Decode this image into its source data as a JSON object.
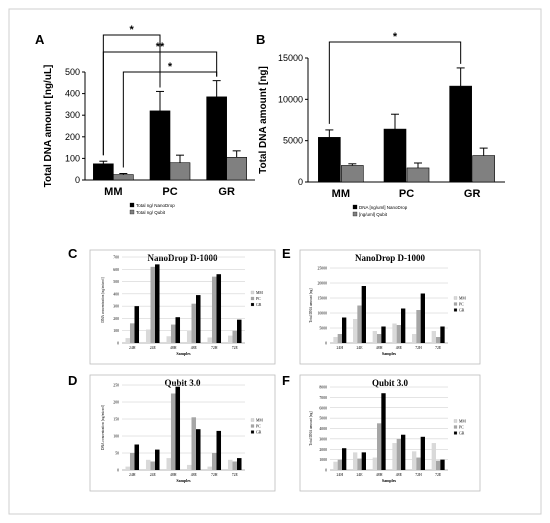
{
  "panels": [
    {
      "letter": "A",
      "chart_data": {
        "type": "bar",
        "ylabel": "Total DNA amount [ng/uL]",
        "ylim": [
          0,
          500
        ],
        "yticks": [
          0,
          100,
          200,
          300,
          400,
          500
        ],
        "categories": [
          "MM",
          "PC",
          "GR"
        ],
        "series": [
          {
            "name": "Total ng/ NanoDrop",
            "color": "#000000",
            "values": [
              75,
              320,
              385
            ],
            "errors": [
              12,
              90,
              75
            ]
          },
          {
            "name": "Total ng/ Qubit",
            "color": "#808080",
            "values": [
              25,
              80,
              105
            ],
            "errors": [
              5,
              35,
              30
            ]
          }
        ],
        "annotations": [
          "*",
          "**",
          "*"
        ]
      }
    },
    {
      "letter": "B",
      "chart_data": {
        "type": "bar",
        "ylabel": "Total DNA amount [ng]",
        "ylim": [
          0,
          15000
        ],
        "yticks": [
          0,
          5000,
          10000,
          15000
        ],
        "categories": [
          "MM",
          "PC",
          "GR"
        ],
        "series": [
          {
            "name": "DNA [ng/uml] NanoDrop",
            "color": "#000000",
            "values": [
              5400,
              6400,
              11600
            ],
            "errors": [
              900,
              1800,
              2200
            ]
          },
          {
            "name": "[ng/uml] Qubit",
            "color": "#808080",
            "values": [
              2000,
              1700,
              3200
            ],
            "errors": [
              200,
              600,
              900
            ]
          }
        ],
        "annotations": [
          "*"
        ]
      }
    },
    {
      "letter": "C",
      "chart_data": {
        "type": "bar",
        "title": "NanoDrop D-1000",
        "ylabel": "DNA concentration [ng/microl]",
        "xlabel": "Samples",
        "ylim": [
          0,
          700
        ],
        "yticks": [
          0,
          100,
          200,
          300,
          400,
          500,
          600,
          700
        ],
        "categories": [
          "24H",
          "24E",
          "48H",
          "48E",
          "72H",
          "72E"
        ],
        "series": [
          {
            "name": "MM",
            "color": "#d9d9d9",
            "values": [
              40,
              110,
              55,
              100,
              45,
              60
            ]
          },
          {
            "name": "PC",
            "color": "#a6a6a6",
            "values": [
              160,
              620,
              150,
              320,
              540,
              100
            ]
          },
          {
            "name": "GR",
            "color": "#000000",
            "values": [
              300,
              640,
              210,
              390,
              560,
              190
            ]
          }
        ]
      }
    },
    {
      "letter": "E",
      "chart_data": {
        "type": "bar",
        "title": "NanoDrop D-1000",
        "ylabel": "Total DNA amount [ng]",
        "xlabel": "Samples",
        "ylim": [
          0,
          25000
        ],
        "yticks": [
          0,
          5000,
          10000,
          15000,
          20000,
          25000
        ],
        "categories": [
          "24H",
          "24E",
          "48H",
          "48E",
          "72H",
          "72E"
        ],
        "series": [
          {
            "name": "MM",
            "color": "#d9d9d9",
            "values": [
              2000,
              8000,
              4000,
              6500,
              3000,
              4000
            ]
          },
          {
            "name": "PC",
            "color": "#a6a6a6",
            "values": [
              3000,
              12500,
              3000,
              6000,
              11000,
              2000
            ]
          },
          {
            "name": "GR",
            "color": "#000000",
            "values": [
              8500,
              19000,
              5500,
              11500,
              16500,
              5500
            ]
          }
        ]
      }
    },
    {
      "letter": "D",
      "chart_data": {
        "type": "bar",
        "title": "Qubit 3.0",
        "ylabel": "DNA concentration [ng/microl]",
        "xlabel": "Samples",
        "ylim": [
          0,
          250
        ],
        "yticks": [
          0,
          50,
          100,
          150,
          200,
          250
        ],
        "categories": [
          "24H",
          "24E",
          "48H",
          "48E",
          "72H",
          "72E"
        ],
        "series": [
          {
            "name": "MM",
            "color": "#d9d9d9",
            "values": [
              10,
              30,
              35,
              15,
              10,
              30
            ]
          },
          {
            "name": "PC",
            "color": "#a6a6a6",
            "values": [
              50,
              25,
              225,
              155,
              50,
              25
            ]
          },
          {
            "name": "GR",
            "color": "#000000",
            "values": [
              75,
              60,
              245,
              120,
              115,
              35
            ]
          }
        ]
      }
    },
    {
      "letter": "F",
      "chart_data": {
        "type": "bar",
        "title": "Qubit 3.0",
        "ylabel": "Total DNA amount [ng]",
        "xlabel": "Samples",
        "ylim": [
          0,
          8000
        ],
        "yticks": [
          0,
          1000,
          2000,
          3000,
          4000,
          5000,
          6000,
          7000,
          8000
        ],
        "categories": [
          "24H",
          "24E",
          "48H",
          "48E",
          "72H",
          "72E"
        ],
        "series": [
          {
            "name": "MM",
            "color": "#d9d9d9",
            "values": [
              800,
              1700,
              1200,
              2600,
              1800,
              2600
            ]
          },
          {
            "name": "PC",
            "color": "#a6a6a6",
            "values": [
              1000,
              1100,
              4500,
              3000,
              1200,
              900
            ]
          },
          {
            "name": "GR",
            "color": "#000000",
            "values": [
              2100,
              1700,
              7400,
              3400,
              3200,
              1000
            ]
          }
        ]
      }
    }
  ]
}
